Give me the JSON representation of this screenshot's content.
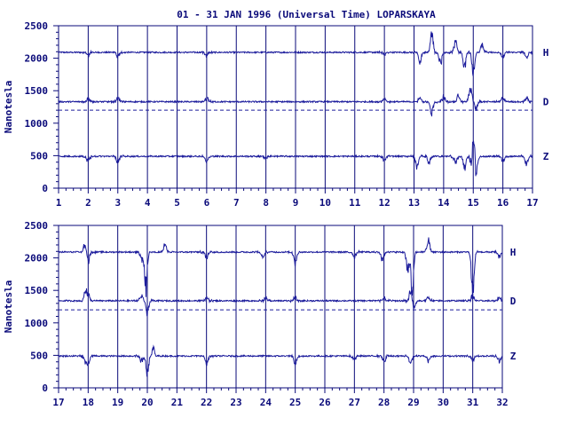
{
  "title": "01 - 31 JAN 1996 (Universal Time) LOPARSKAYA",
  "colors": {
    "axis": "#0a0a7a",
    "trace": "#1c1c9c",
    "grid": "#0a0a7a",
    "background": "#ffffff"
  },
  "chart_data": [
    {
      "type": "line",
      "title": "01 - 31 JAN 1996 (Universal Time) LOPARSKAYA",
      "ylabel": "Nanotesla",
      "xlabel": "",
      "xlim": [
        1,
        17
      ],
      "ylim": [
        0,
        2500
      ],
      "x_ticks": [
        "1",
        "2",
        "3",
        "4",
        "5",
        "6",
        "7",
        "8",
        "9",
        "10",
        "11",
        "12",
        "13",
        "14",
        "15",
        "16",
        "17"
      ],
      "y_ticks": [
        "0",
        "500",
        "1000",
        "1500",
        "2000",
        "2500"
      ],
      "grid": "vertical day lines",
      "reference_line": 1200,
      "series": [
        {
          "name": "H",
          "baseline": 2090,
          "events": [
            [
              2,
              -40
            ],
            [
              3,
              -80
            ],
            [
              6,
              -40
            ],
            [
              12,
              -40
            ],
            [
              13.2,
              -180
            ],
            [
              13.6,
              320
            ],
            [
              13.9,
              -200
            ],
            [
              14.4,
              180
            ],
            [
              14.7,
              -250
            ],
            [
              15,
              -350
            ],
            [
              15.3,
              150
            ],
            [
              16,
              -80
            ],
            [
              16.8,
              -80
            ]
          ]
        },
        {
          "name": "D",
          "baseline": 1330,
          "events": [
            [
              2,
              50
            ],
            [
              3,
              60
            ],
            [
              6,
              50
            ],
            [
              12,
              40
            ],
            [
              13.2,
              80
            ],
            [
              13.6,
              -180
            ],
            [
              14.0,
              80
            ],
            [
              14.5,
              100
            ],
            [
              14.9,
              250
            ],
            [
              15.1,
              -100
            ],
            [
              16,
              60
            ],
            [
              16.8,
              70
            ]
          ]
        },
        {
          "name": "Z",
          "baseline": 490,
          "events": [
            [
              2,
              -80
            ],
            [
              3,
              -90
            ],
            [
              6,
              -70
            ],
            [
              8,
              -30
            ],
            [
              12,
              -60
            ],
            [
              13.1,
              -180
            ],
            [
              13.5,
              -100
            ],
            [
              14.4,
              -110
            ],
            [
              14.7,
              -200
            ],
            [
              14.95,
              -220
            ],
            [
              15.0,
              400
            ],
            [
              15.1,
              -300
            ],
            [
              16,
              -70
            ],
            [
              16.8,
              -140
            ]
          ]
        }
      ]
    },
    {
      "type": "line",
      "title": "",
      "ylabel": "Nanotesla",
      "xlabel": "",
      "xlim": [
        17,
        32
      ],
      "ylim": [
        0,
        2500
      ],
      "x_ticks": [
        "17",
        "18",
        "19",
        "20",
        "21",
        "22",
        "23",
        "24",
        "25",
        "26",
        "27",
        "28",
        "29",
        "30",
        "31",
        "32"
      ],
      "y_ticks": [
        "0",
        "500",
        "1000",
        "1500",
        "2000",
        "2500"
      ],
      "grid": "vertical day lines",
      "reference_line": 1200,
      "series": [
        {
          "name": "H",
          "baseline": 2090,
          "events": [
            [
              17.9,
              150
            ],
            [
              18.0,
              -150
            ],
            [
              19.8,
              -120
            ],
            [
              19.95,
              -600
            ],
            [
              20.6,
              120
            ],
            [
              22,
              -100
            ],
            [
              23.9,
              -90
            ],
            [
              25,
              -200
            ],
            [
              27,
              -80
            ],
            [
              27.95,
              -140
            ],
            [
              28.8,
              -280
            ],
            [
              28.95,
              -600
            ],
            [
              29.5,
              180
            ],
            [
              31,
              -700
            ],
            [
              31.9,
              -80
            ]
          ]
        },
        {
          "name": "D",
          "baseline": 1340,
          "events": [
            [
              17.9,
              150
            ],
            [
              18.0,
              100
            ],
            [
              19.8,
              80
            ],
            [
              20.0,
              -200
            ],
            [
              22,
              60
            ],
            [
              24,
              40
            ],
            [
              25,
              60
            ],
            [
              28,
              50
            ],
            [
              28.9,
              180
            ],
            [
              29.0,
              -150
            ],
            [
              29.5,
              60
            ],
            [
              31,
              90
            ],
            [
              31.9,
              60
            ]
          ]
        },
        {
          "name": "Z",
          "baseline": 490,
          "events": [
            [
              17.9,
              -80
            ],
            [
              18.0,
              -120
            ],
            [
              19.8,
              -90
            ],
            [
              20.0,
              -300
            ],
            [
              20.2,
              130
            ],
            [
              22,
              -120
            ],
            [
              25,
              -130
            ],
            [
              27,
              -60
            ],
            [
              28,
              -100
            ],
            [
              28.9,
              -110
            ],
            [
              29.5,
              -70
            ],
            [
              31,
              -90
            ],
            [
              31.9,
              -90
            ]
          ]
        }
      ]
    }
  ]
}
